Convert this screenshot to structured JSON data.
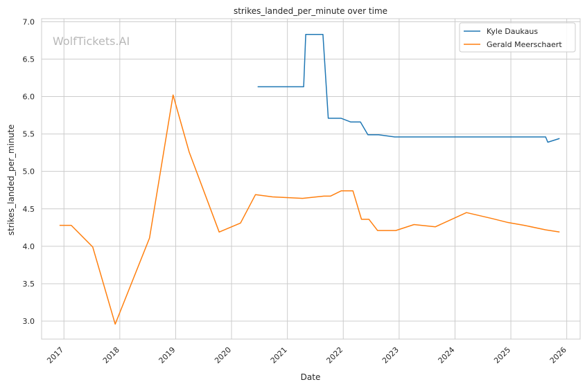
{
  "chart_data": {
    "type": "line",
    "title": "strikes_landed_per_minute over time",
    "xlabel": "Date",
    "ylabel": "strikes_landed_per_minute",
    "watermark": "WolfTickets.AI",
    "x_range": [
      "2016-08-09",
      "2026-03-30"
    ],
    "xlim": [
      2016.6,
      2026.24
    ],
    "ylim": [
      2.76,
      7.04
    ],
    "x_ticks": [
      "2017",
      "2018",
      "2019",
      "2020",
      "2021",
      "2022",
      "2023",
      "2024",
      "2025",
      "2026"
    ],
    "y_ticks": [
      "3.0",
      "3.5",
      "4.0",
      "4.5",
      "5.0",
      "5.5",
      "6.0",
      "6.5",
      "7.0"
    ],
    "grid": true,
    "legend_position": "top-right",
    "series": [
      {
        "name": "Kyle Daukaus",
        "color": "#1f77b4",
        "points": [
          {
            "x": "2020-06-20",
            "y": 6.13
          },
          {
            "x": "2021-04-17",
            "y": 6.13
          },
          {
            "x": "2021-05-01",
            "y": 6.83
          },
          {
            "x": "2021-08-21",
            "y": 6.83
          },
          {
            "x": "2021-09-25",
            "y": 5.71
          },
          {
            "x": "2021-12-18",
            "y": 5.71
          },
          {
            "x": "2022-02-19",
            "y": 5.66
          },
          {
            "x": "2022-04-23",
            "y": 5.66
          },
          {
            "x": "2022-06-11",
            "y": 5.49
          },
          {
            "x": "2022-08-20",
            "y": 5.49
          },
          {
            "x": "2022-12-03",
            "y": 5.46
          },
          {
            "x": "2025-08-16",
            "y": 5.46
          },
          {
            "x": "2025-08-30",
            "y": 5.39
          },
          {
            "x": "2025-11-15",
            "y": 5.44
          }
        ]
      },
      {
        "name": "Gerald Meerschaert",
        "color": "#ff7f0e",
        "points": [
          {
            "x": "2016-12-03",
            "y": 4.28
          },
          {
            "x": "2017-02-18",
            "y": 4.28
          },
          {
            "x": "2017-07-08",
            "y": 3.99
          },
          {
            "x": "2017-12-02",
            "y": 2.96
          },
          {
            "x": "2018-07-14",
            "y": 4.11
          },
          {
            "x": "2018-12-15",
            "y": 6.02
          },
          {
            "x": "2019-03-30",
            "y": 5.26
          },
          {
            "x": "2019-10-12",
            "y": 4.19
          },
          {
            "x": "2020-02-29",
            "y": 4.31
          },
          {
            "x": "2020-06-06",
            "y": 4.69
          },
          {
            "x": "2020-09-26",
            "y": 4.66
          },
          {
            "x": "2021-04-10",
            "y": 4.64
          },
          {
            "x": "2021-08-28",
            "y": 4.67
          },
          {
            "x": "2021-10-09",
            "y": 4.67
          },
          {
            "x": "2021-12-18",
            "y": 4.74
          },
          {
            "x": "2022-03-05",
            "y": 4.74
          },
          {
            "x": "2022-04-30",
            "y": 4.36
          },
          {
            "x": "2022-06-18",
            "y": 4.36
          },
          {
            "x": "2022-08-13",
            "y": 4.21
          },
          {
            "x": "2022-12-10",
            "y": 4.21
          },
          {
            "x": "2023-04-08",
            "y": 4.29
          },
          {
            "x": "2023-08-26",
            "y": 4.26
          },
          {
            "x": "2024-03-16",
            "y": 4.45
          },
          {
            "x": "2024-08-31",
            "y": 4.37
          },
          {
            "x": "2024-12-07",
            "y": 4.32
          },
          {
            "x": "2025-03-29",
            "y": 4.28
          },
          {
            "x": "2025-08-16",
            "y": 4.22
          },
          {
            "x": "2025-11-15",
            "y": 4.19
          }
        ]
      }
    ]
  }
}
